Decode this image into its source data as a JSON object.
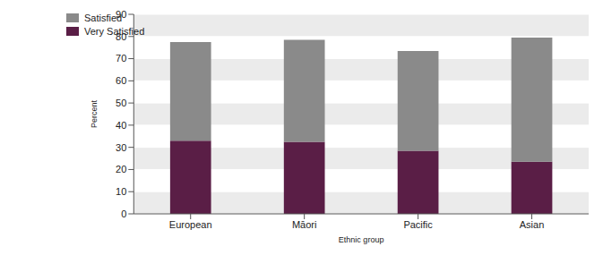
{
  "chart_data": {
    "type": "bar",
    "stacked": true,
    "x_label": "Ethnic group",
    "y_label": "Percent",
    "categories": [
      "European",
      "Māori",
      "Pacific",
      "Asian"
    ],
    "series": [
      {
        "name": "Very Satisfied",
        "color": "#5a1e46",
        "values": [
          33,
          32.5,
          28.5,
          23.5
        ]
      },
      {
        "name": "Satisfied",
        "color": "#8a8a8a",
        "values": [
          44.5,
          46,
          45,
          56
        ]
      }
    ],
    "ylim": [
      0,
      90
    ],
    "yticks": [
      0,
      10,
      20,
      30,
      40,
      50,
      60,
      70,
      80,
      90
    ],
    "grid": true,
    "legend": "upper left"
  }
}
